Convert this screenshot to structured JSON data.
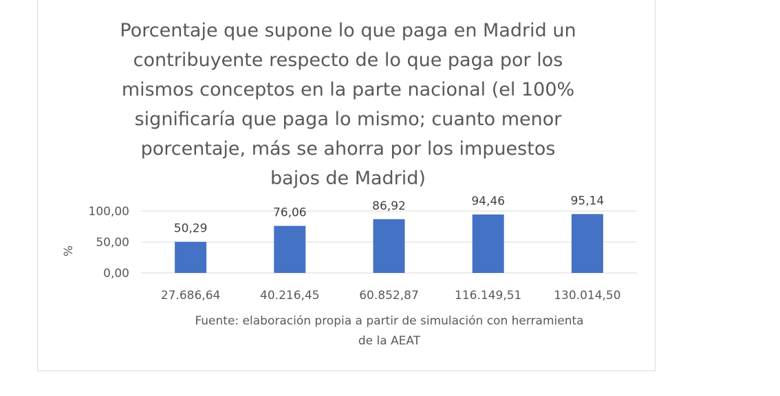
{
  "chart_data": {
    "type": "bar",
    "title_lines": [
      "Porcentaje que supone lo que paga en Madrid un",
      "contribuyente respecto de lo que paga por los",
      "mismos conceptos en la parte nacional (el 100%",
      "significaría que paga lo mismo; cuanto menor",
      "porcentaje, más se ahorra por los impuestos",
      "bajos de Madrid)"
    ],
    "categories": [
      "27.686,64",
      "40.216,45",
      "60.852,87",
      "116.149,51",
      "130.014,50"
    ],
    "values": [
      50.29,
      76.06,
      86.92,
      94.46,
      95.14
    ],
    "data_labels": [
      "50,29",
      "76,06",
      "86,92",
      "94,46",
      "95,14"
    ],
    "ylabel": "%",
    "xlabel_lines": [
      "Fuente: elaboración propia a partir de simulación con herramienta",
      "de la AEAT"
    ],
    "ylim": [
      0,
      100
    ],
    "yticks": [
      0,
      50,
      100
    ],
    "ytick_labels": [
      "0,00",
      "50,00",
      "100,00"
    ],
    "grid": true,
    "legend": "none",
    "bar_color": "#4472c4",
    "grid_color": "#d9d9d9"
  }
}
